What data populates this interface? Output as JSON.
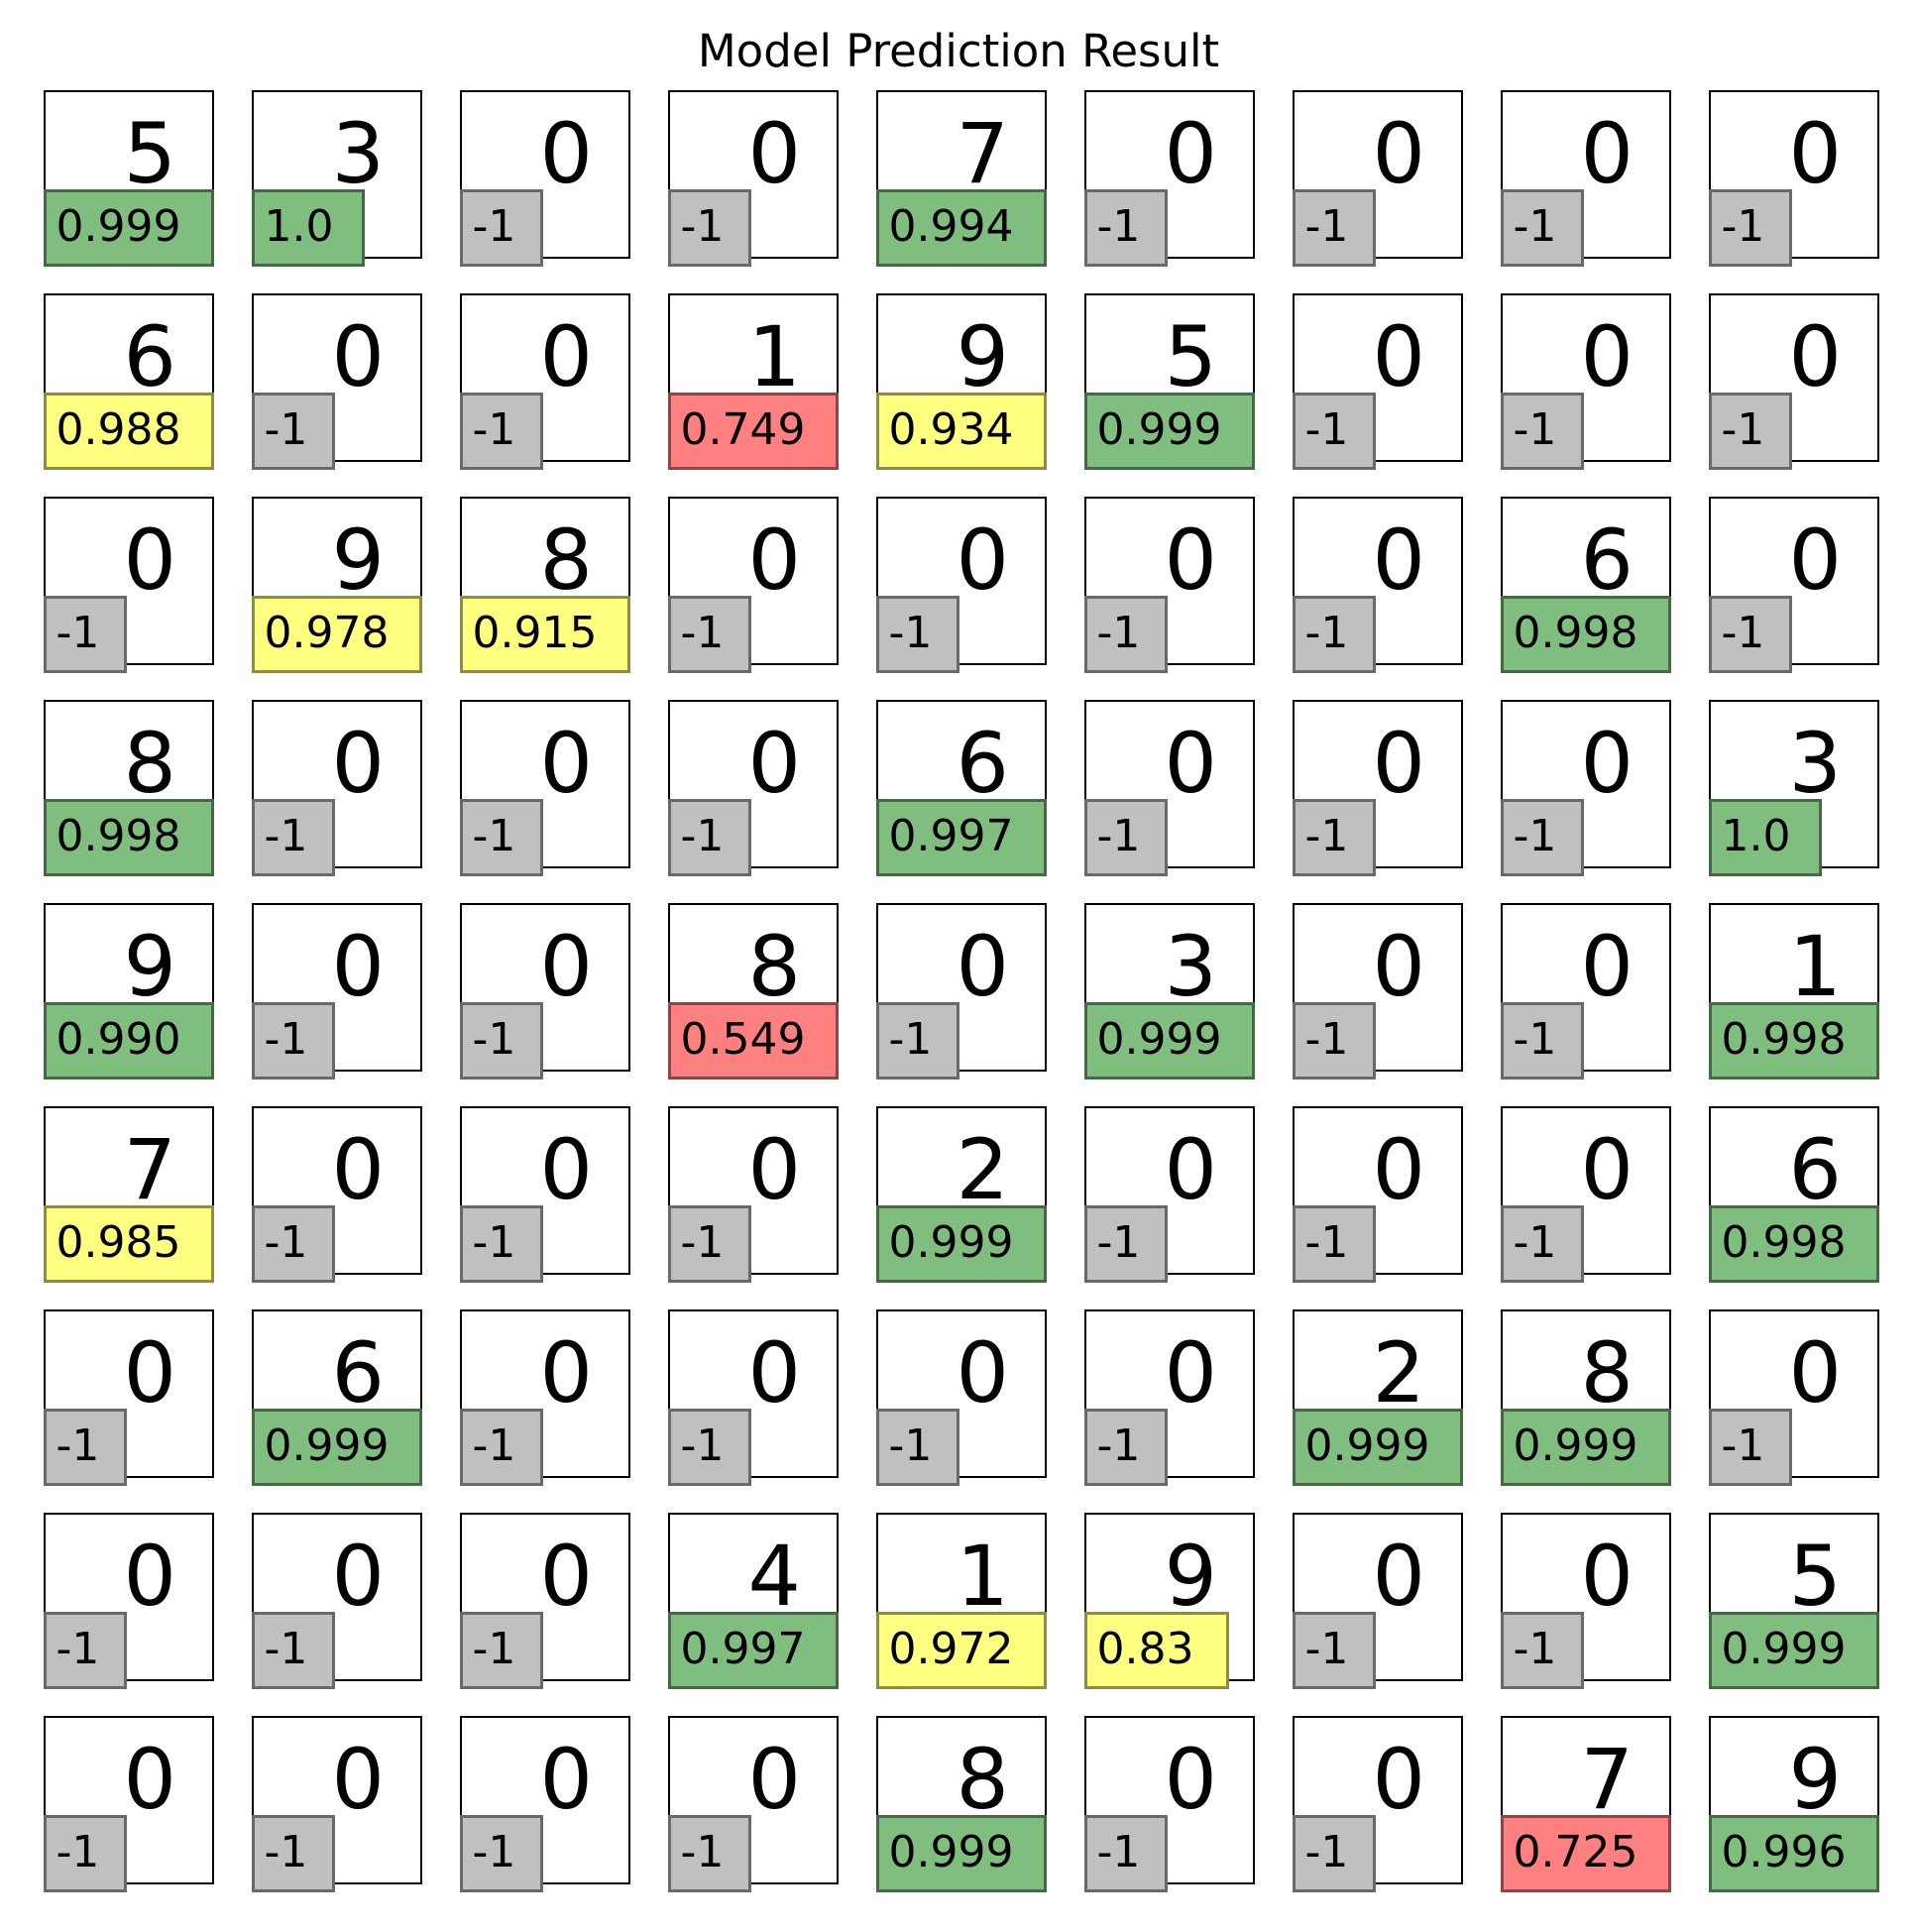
{
  "title": "Model Prediction Result",
  "colors": {
    "green": "#80be80",
    "yellow": "#ffff80",
    "red": "#ff8080",
    "gray": "#c0c0c0"
  },
  "grid": {
    "rows": [
      [
        {
          "digit": "5",
          "score": "0.999",
          "status": "green"
        },
        {
          "digit": "3",
          "score": "1.0",
          "status": "green"
        },
        {
          "digit": "0",
          "score": "-1",
          "status": "gray"
        },
        {
          "digit": "0",
          "score": "-1",
          "status": "gray"
        },
        {
          "digit": "7",
          "score": "0.994",
          "status": "green"
        },
        {
          "digit": "0",
          "score": "-1",
          "status": "gray"
        },
        {
          "digit": "0",
          "score": "-1",
          "status": "gray"
        },
        {
          "digit": "0",
          "score": "-1",
          "status": "gray"
        },
        {
          "digit": "0",
          "score": "-1",
          "status": "gray"
        }
      ],
      [
        {
          "digit": "6",
          "score": "0.988",
          "status": "yellow"
        },
        {
          "digit": "0",
          "score": "-1",
          "status": "gray"
        },
        {
          "digit": "0",
          "score": "-1",
          "status": "gray"
        },
        {
          "digit": "1",
          "score": "0.749",
          "status": "red"
        },
        {
          "digit": "9",
          "score": "0.934",
          "status": "yellow"
        },
        {
          "digit": "5",
          "score": "0.999",
          "status": "green"
        },
        {
          "digit": "0",
          "score": "-1",
          "status": "gray"
        },
        {
          "digit": "0",
          "score": "-1",
          "status": "gray"
        },
        {
          "digit": "0",
          "score": "-1",
          "status": "gray"
        }
      ],
      [
        {
          "digit": "0",
          "score": "-1",
          "status": "gray"
        },
        {
          "digit": "9",
          "score": "0.978",
          "status": "yellow"
        },
        {
          "digit": "8",
          "score": "0.915",
          "status": "yellow"
        },
        {
          "digit": "0",
          "score": "-1",
          "status": "gray"
        },
        {
          "digit": "0",
          "score": "-1",
          "status": "gray"
        },
        {
          "digit": "0",
          "score": "-1",
          "status": "gray"
        },
        {
          "digit": "0",
          "score": "-1",
          "status": "gray"
        },
        {
          "digit": "6",
          "score": "0.998",
          "status": "green"
        },
        {
          "digit": "0",
          "score": "-1",
          "status": "gray"
        }
      ],
      [
        {
          "digit": "8",
          "score": "0.998",
          "status": "green"
        },
        {
          "digit": "0",
          "score": "-1",
          "status": "gray"
        },
        {
          "digit": "0",
          "score": "-1",
          "status": "gray"
        },
        {
          "digit": "0",
          "score": "-1",
          "status": "gray"
        },
        {
          "digit": "6",
          "score": "0.997",
          "status": "green"
        },
        {
          "digit": "0",
          "score": "-1",
          "status": "gray"
        },
        {
          "digit": "0",
          "score": "-1",
          "status": "gray"
        },
        {
          "digit": "0",
          "score": "-1",
          "status": "gray"
        },
        {
          "digit": "3",
          "score": "1.0",
          "status": "green"
        }
      ],
      [
        {
          "digit": "9",
          "score": "0.990",
          "status": "green"
        },
        {
          "digit": "0",
          "score": "-1",
          "status": "gray"
        },
        {
          "digit": "0",
          "score": "-1",
          "status": "gray"
        },
        {
          "digit": "8",
          "score": "0.549",
          "status": "red"
        },
        {
          "digit": "0",
          "score": "-1",
          "status": "gray"
        },
        {
          "digit": "3",
          "score": "0.999",
          "status": "green"
        },
        {
          "digit": "0",
          "score": "-1",
          "status": "gray"
        },
        {
          "digit": "0",
          "score": "-1",
          "status": "gray"
        },
        {
          "digit": "1",
          "score": "0.998",
          "status": "green"
        }
      ],
      [
        {
          "digit": "7",
          "score": "0.985",
          "status": "yellow"
        },
        {
          "digit": "0",
          "score": "-1",
          "status": "gray"
        },
        {
          "digit": "0",
          "score": "-1",
          "status": "gray"
        },
        {
          "digit": "0",
          "score": "-1",
          "status": "gray"
        },
        {
          "digit": "2",
          "score": "0.999",
          "status": "green"
        },
        {
          "digit": "0",
          "score": "-1",
          "status": "gray"
        },
        {
          "digit": "0",
          "score": "-1",
          "status": "gray"
        },
        {
          "digit": "0",
          "score": "-1",
          "status": "gray"
        },
        {
          "digit": "6",
          "score": "0.998",
          "status": "green"
        }
      ],
      [
        {
          "digit": "0",
          "score": "-1",
          "status": "gray"
        },
        {
          "digit": "6",
          "score": "0.999",
          "status": "green"
        },
        {
          "digit": "0",
          "score": "-1",
          "status": "gray"
        },
        {
          "digit": "0",
          "score": "-1",
          "status": "gray"
        },
        {
          "digit": "0",
          "score": "-1",
          "status": "gray"
        },
        {
          "digit": "0",
          "score": "-1",
          "status": "gray"
        },
        {
          "digit": "2",
          "score": "0.999",
          "status": "green"
        },
        {
          "digit": "8",
          "score": "0.999",
          "status": "green"
        },
        {
          "digit": "0",
          "score": "-1",
          "status": "gray"
        }
      ],
      [
        {
          "digit": "0",
          "score": "-1",
          "status": "gray"
        },
        {
          "digit": "0",
          "score": "-1",
          "status": "gray"
        },
        {
          "digit": "0",
          "score": "-1",
          "status": "gray"
        },
        {
          "digit": "4",
          "score": "0.997",
          "status": "green"
        },
        {
          "digit": "1",
          "score": "0.972",
          "status": "yellow"
        },
        {
          "digit": "9",
          "score": "0.83",
          "status": "yellow"
        },
        {
          "digit": "0",
          "score": "-1",
          "status": "gray"
        },
        {
          "digit": "0",
          "score": "-1",
          "status": "gray"
        },
        {
          "digit": "5",
          "score": "0.999",
          "status": "green"
        }
      ],
      [
        {
          "digit": "0",
          "score": "-1",
          "status": "gray"
        },
        {
          "digit": "0",
          "score": "-1",
          "status": "gray"
        },
        {
          "digit": "0",
          "score": "-1",
          "status": "gray"
        },
        {
          "digit": "0",
          "score": "-1",
          "status": "gray"
        },
        {
          "digit": "8",
          "score": "0.999",
          "status": "green"
        },
        {
          "digit": "0",
          "score": "-1",
          "status": "gray"
        },
        {
          "digit": "0",
          "score": "-1",
          "status": "gray"
        },
        {
          "digit": "7",
          "score": "0.725",
          "status": "red"
        },
        {
          "digit": "9",
          "score": "0.996",
          "status": "green"
        }
      ]
    ]
  }
}
